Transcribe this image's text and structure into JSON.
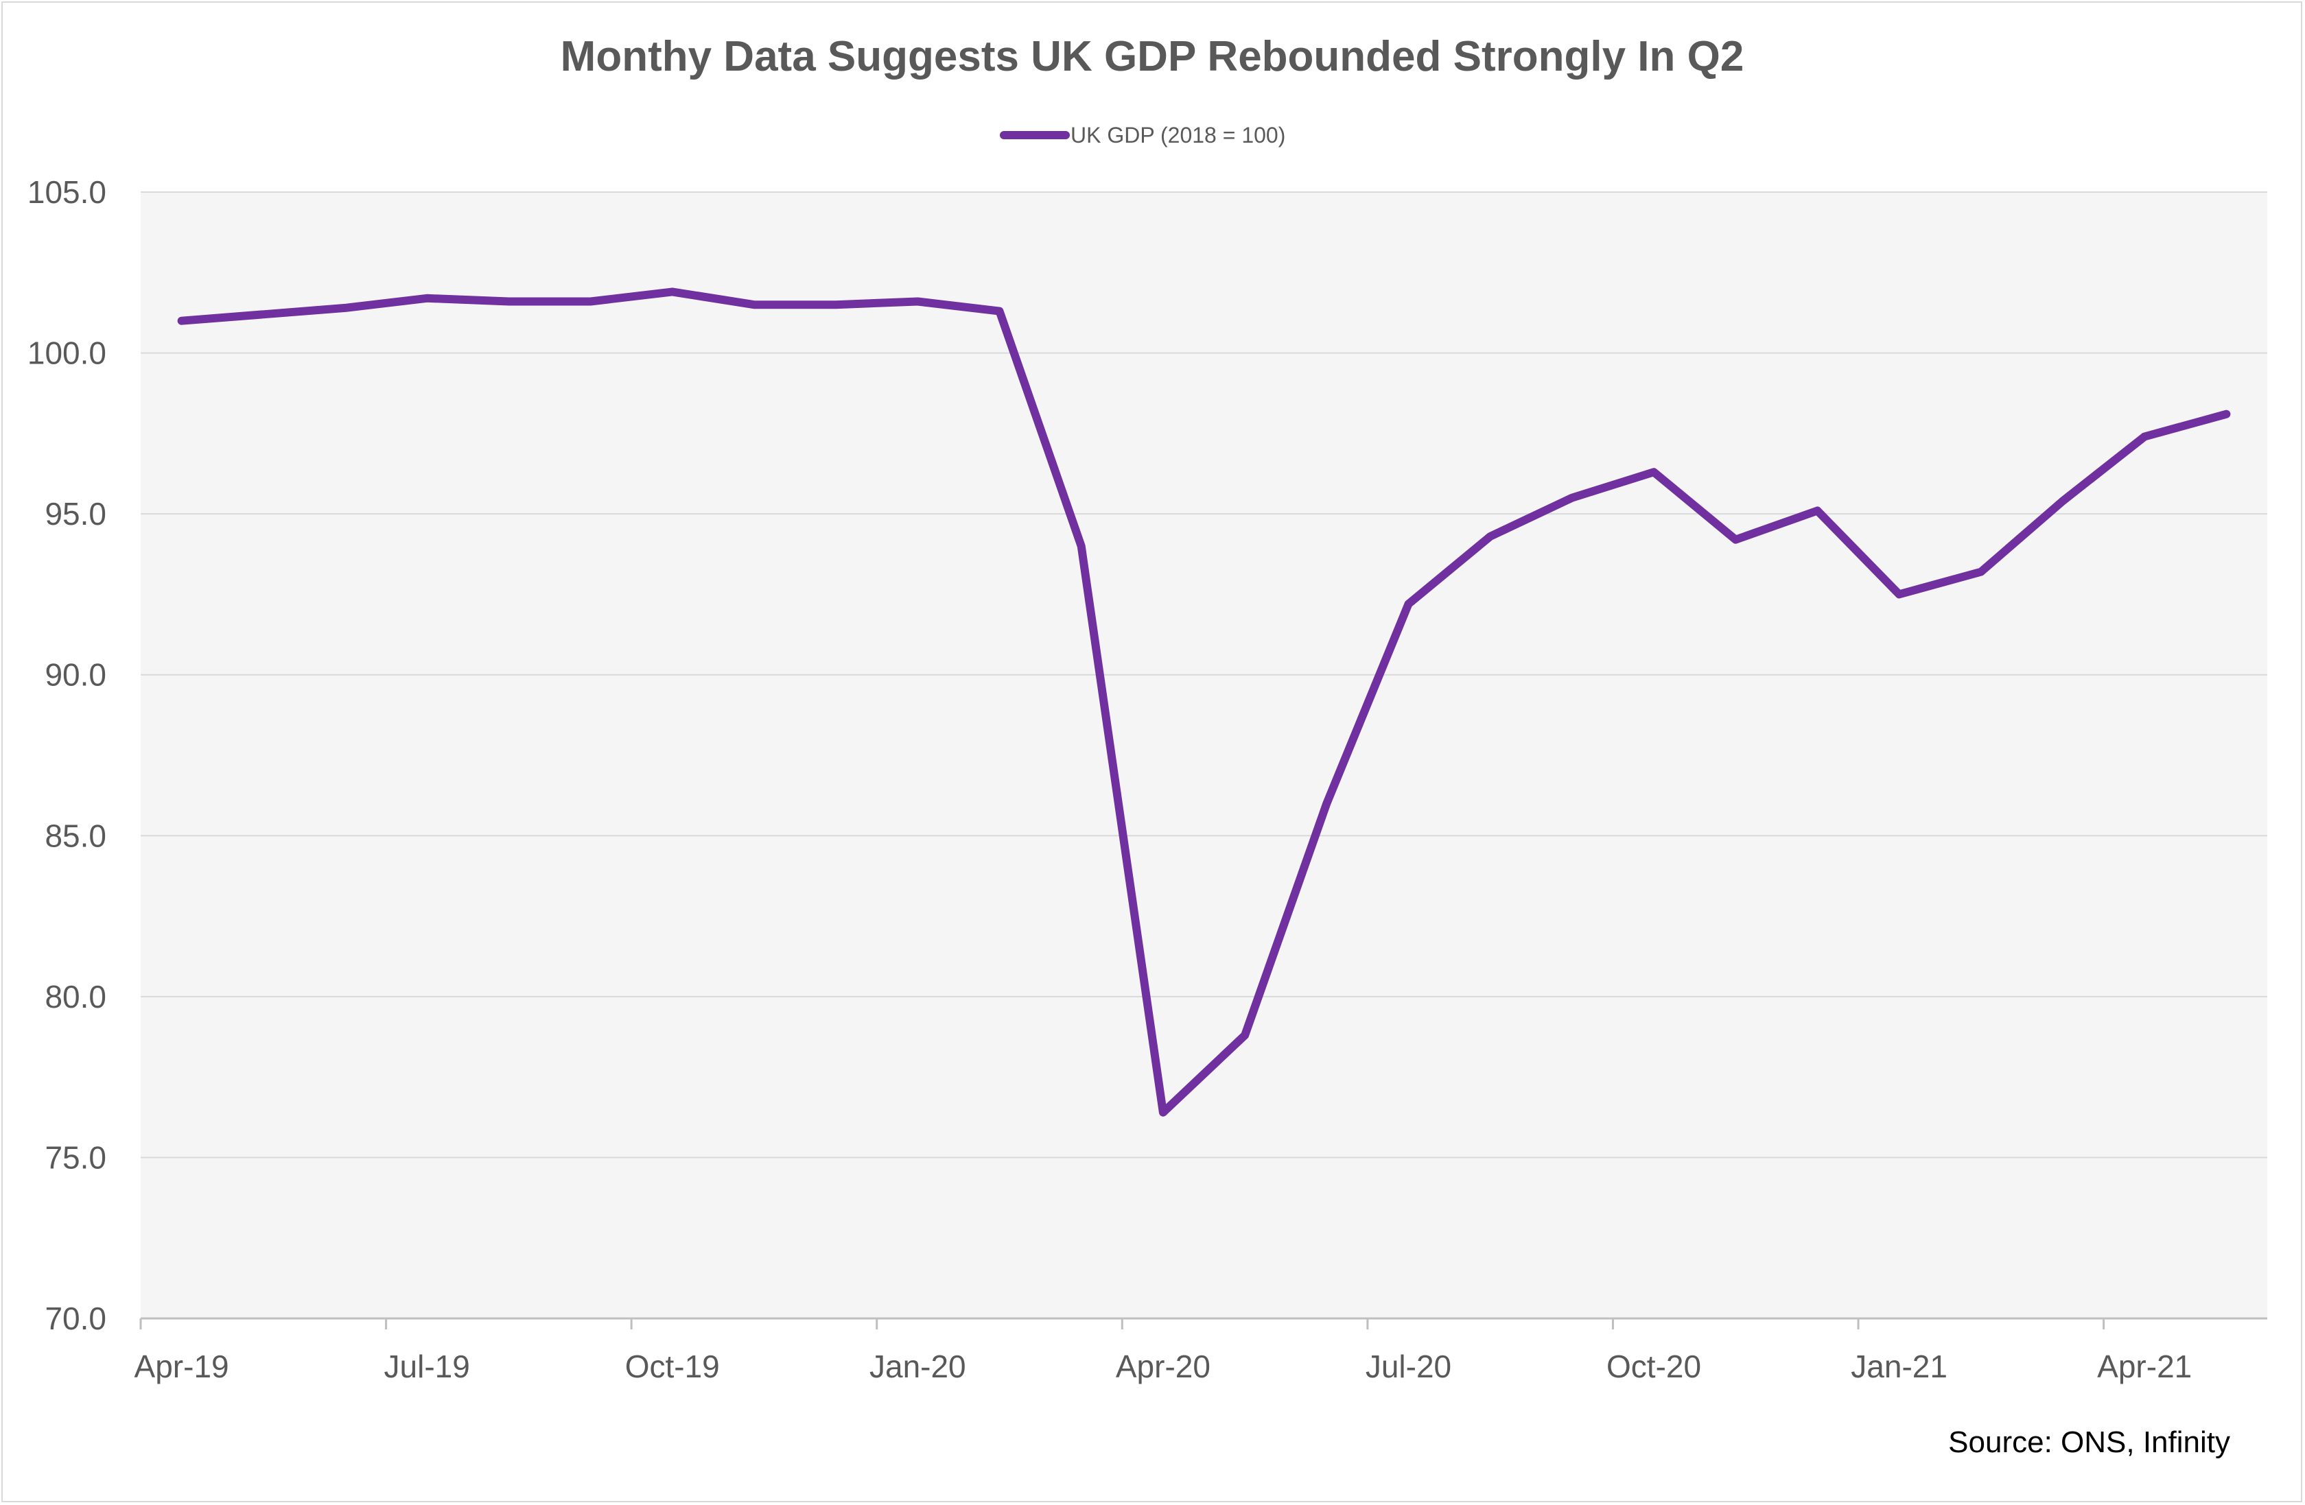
{
  "chart_data": {
    "type": "line",
    "title": "Monthy Data Suggests UK GDP Rebounded Strongly In Q2",
    "source": "Source: ONS, Infinity",
    "legend_position": "top-center",
    "grid": true,
    "ylim": [
      70,
      105
    ],
    "y_ticks": [
      "105.0",
      "100.0",
      "95.0",
      "90.0",
      "85.0",
      "80.0",
      "75.0",
      "70.0"
    ],
    "y_tick_values": [
      105,
      100,
      95,
      90,
      85,
      80,
      75,
      70
    ],
    "x_tick_labels": [
      "Apr-19",
      "Jul-19",
      "Oct-19",
      "Jan-20",
      "Apr-20",
      "Jul-20",
      "Oct-20",
      "Jan-21",
      "Apr-21"
    ],
    "x": [
      "Apr-19",
      "May-19",
      "Jun-19",
      "Jul-19",
      "Aug-19",
      "Sep-19",
      "Oct-19",
      "Nov-19",
      "Dec-19",
      "Jan-20",
      "Feb-20",
      "Mar-20",
      "Apr-20",
      "May-20",
      "Jun-20",
      "Jul-20",
      "Aug-20",
      "Sep-20",
      "Oct-20",
      "Nov-20",
      "Dec-20",
      "Jan-21",
      "Feb-21",
      "Mar-21",
      "Apr-21",
      "May-21"
    ],
    "series": [
      {
        "name": "UK GDP (2018 = 100)",
        "color": "#7030a0",
        "values": [
          101.0,
          101.2,
          101.4,
          101.7,
          101.6,
          101.6,
          101.9,
          101.5,
          101.5,
          101.6,
          101.3,
          94.0,
          76.4,
          78.8,
          86.0,
          92.2,
          94.3,
          95.5,
          96.3,
          94.2,
          95.1,
          92.5,
          93.2,
          95.4,
          97.4,
          98.1
        ]
      }
    ]
  },
  "colors": {
    "plot_background": "#f5f5f5",
    "gridline": "#d9d9d9",
    "axis": "#bfbfbf",
    "text": "#595959"
  }
}
